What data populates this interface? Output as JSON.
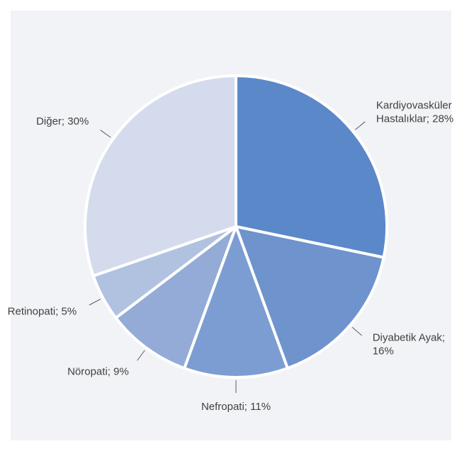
{
  "chart_data": {
    "type": "pie",
    "values": [
      28,
      16,
      11,
      9,
      5,
      30
    ],
    "value_labels": [
      "Kardiyovasküler Hastalıklar; 28%",
      "Diyabetik Ayak; 16%",
      "Nefropati; 11%",
      "Nöropati; 9%",
      "Retinopati; 5%",
      "Diğer; 30%"
    ],
    "colors": [
      "#5b88c8",
      "#6f93cc",
      "#7c9dd2",
      "#93abd6",
      "#b1c1e0",
      "#d4dbed"
    ]
  }
}
